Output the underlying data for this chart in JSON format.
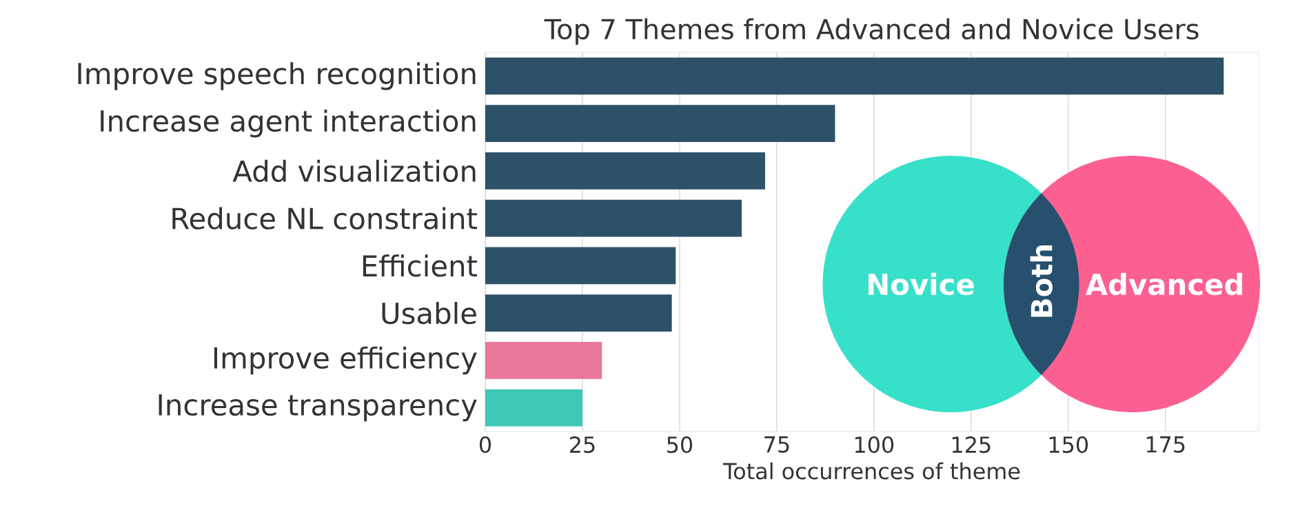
{
  "chart_data": {
    "type": "bar",
    "orientation": "horizontal",
    "title": "Top 7 Themes from Advanced and Novice Users",
    "xlabel": "Total occurrences of theme",
    "categories": [
      "Improve speech recognition",
      "Increase agent interaction",
      "Add visualization",
      "Reduce NL constraint",
      "Efficient",
      "Usable",
      "Improve efficiency",
      "Increase transparency"
    ],
    "values": [
      190,
      90,
      72,
      66,
      49,
      48,
      30,
      25
    ],
    "colors": [
      "#2d5168",
      "#2d5168",
      "#2d5168",
      "#2d5168",
      "#2d5168",
      "#2d5168",
      "#e8779a",
      "#3ec9b6"
    ],
    "xlim": [
      0,
      199
    ],
    "xticks": [
      0,
      25,
      50,
      75,
      100,
      125,
      150,
      175
    ],
    "grid": "x",
    "annotations": [
      "Novice",
      "Both",
      "Advanced"
    ]
  }
}
